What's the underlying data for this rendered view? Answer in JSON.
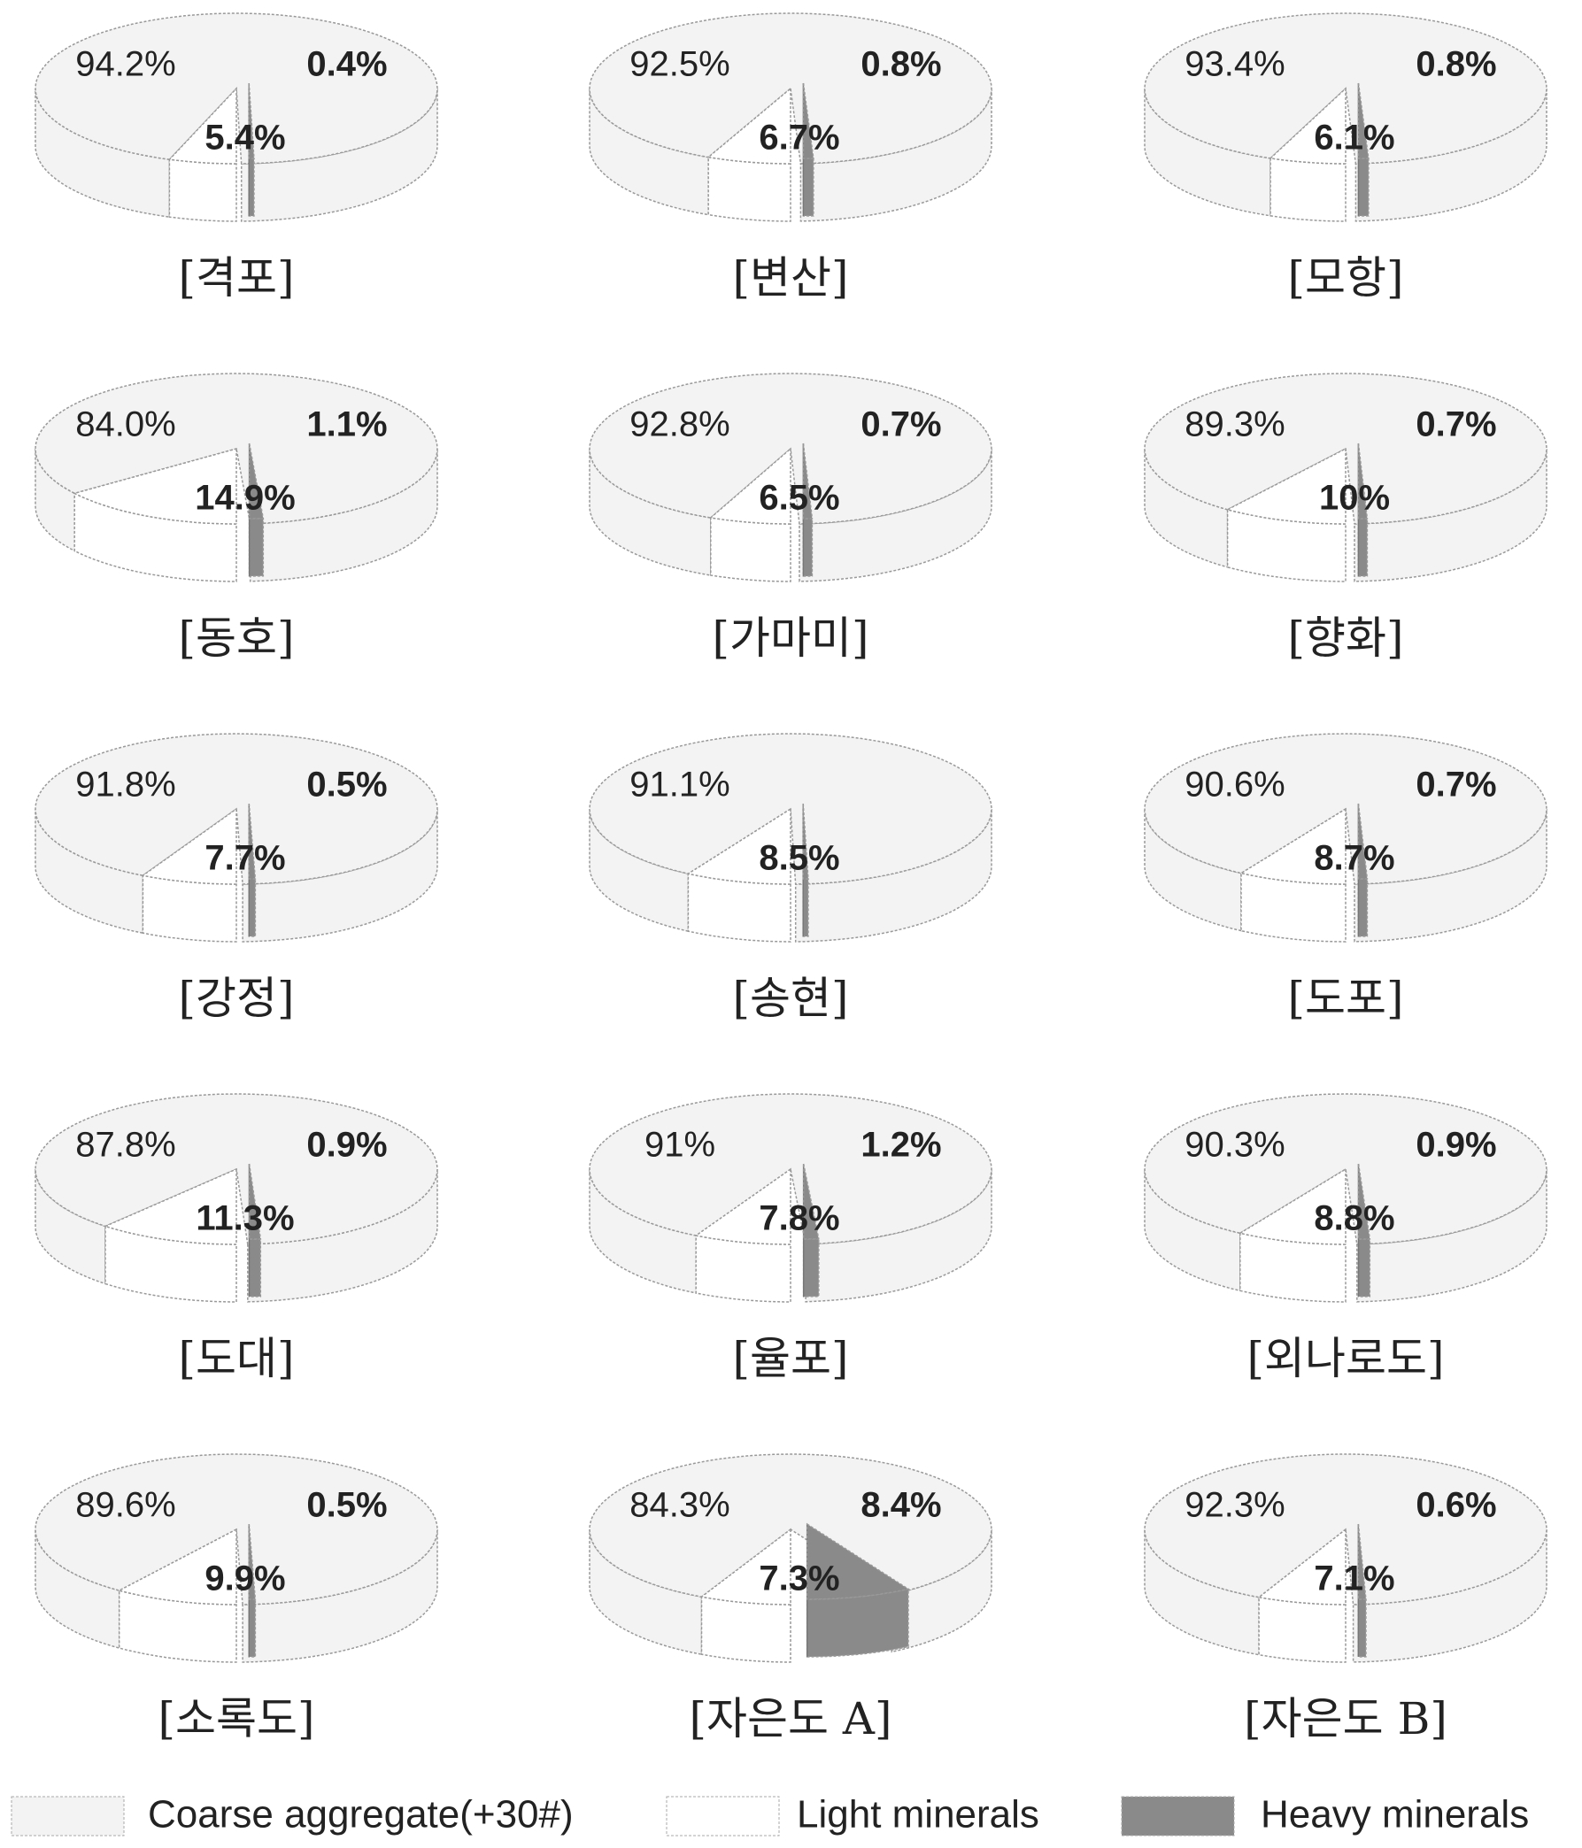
{
  "chart_data": [
    {
      "type": "pie",
      "title": "[격포]",
      "values": [
        94.2,
        5.4,
        0.4
      ],
      "value_labels": [
        "94.2%",
        "5.4%",
        "0.4%"
      ]
    },
    {
      "type": "pie",
      "title": "[변산]",
      "values": [
        92.5,
        6.7,
        0.8
      ],
      "value_labels": [
        "92.5%",
        "6.7%",
        "0.8%"
      ]
    },
    {
      "type": "pie",
      "title": "[모항]",
      "values": [
        93.4,
        6.1,
        0.8
      ],
      "value_labels": [
        "93.4%",
        "6.1%",
        "0.8%"
      ]
    },
    {
      "type": "pie",
      "title": "[동호]",
      "values": [
        84.0,
        14.9,
        1.1
      ],
      "value_labels": [
        "84.0%",
        "14.9%",
        "1.1%"
      ]
    },
    {
      "type": "pie",
      "title": "[가마미]",
      "values": [
        92.8,
        6.5,
        0.7
      ],
      "value_labels": [
        "92.8%",
        "6.5%",
        "0.7%"
      ]
    },
    {
      "type": "pie",
      "title": "[향화]",
      "values": [
        89.3,
        10,
        0.7
      ],
      "value_labels": [
        "89.3%",
        "10%",
        "0.7%"
      ]
    },
    {
      "type": "pie",
      "title": "[강정]",
      "values": [
        91.8,
        7.7,
        0.5
      ],
      "value_labels": [
        "91.8%",
        "7.7%",
        "0.5%"
      ]
    },
    {
      "type": "pie",
      "title": "[송현]",
      "values": [
        91.1,
        8.5,
        0.4
      ],
      "value_labels": [
        "91.1%",
        "8.5%",
        null
      ]
    },
    {
      "type": "pie",
      "title": "[도포]",
      "values": [
        90.6,
        8.7,
        0.7
      ],
      "value_labels": [
        "90.6%",
        "8.7%",
        "0.7%"
      ]
    },
    {
      "type": "pie",
      "title": "[도대]",
      "values": [
        87.8,
        11.3,
        0.9
      ],
      "value_labels": [
        "87.8%",
        "11.3%",
        "0.9%"
      ]
    },
    {
      "type": "pie",
      "title": "[율포]",
      "values": [
        91,
        7.8,
        1.2
      ],
      "value_labels": [
        "91%",
        "7.8%",
        "1.2%"
      ]
    },
    {
      "type": "pie",
      "title": "[외나로도]",
      "values": [
        90.3,
        8.8,
        0.9
      ],
      "value_labels": [
        "90.3%",
        "8.8%",
        "0.9%"
      ]
    },
    {
      "type": "pie",
      "title": "[소록도]",
      "values": [
        89.6,
        9.9,
        0.5
      ],
      "value_labels": [
        "89.6%",
        "9.9%",
        "0.5%"
      ]
    },
    {
      "type": "pie",
      "title": "[자은도 A]",
      "values": [
        84.3,
        7.3,
        8.4
      ],
      "value_labels": [
        "84.3%",
        "7.3%",
        "8.4%"
      ]
    },
    {
      "type": "pie",
      "title": "[자은도 B]",
      "values": [
        92.3,
        7.1,
        0.6
      ],
      "value_labels": [
        "92.3%",
        "7.1%",
        "0.6%"
      ]
    }
  ],
  "legend": {
    "labels": [
      "Coarse aggregate(+30#)",
      "Light minerals",
      "Heavy minerals"
    ],
    "colors": [
      "#f3f3f3",
      "#ffffff",
      "#8a8a8a"
    ]
  }
}
